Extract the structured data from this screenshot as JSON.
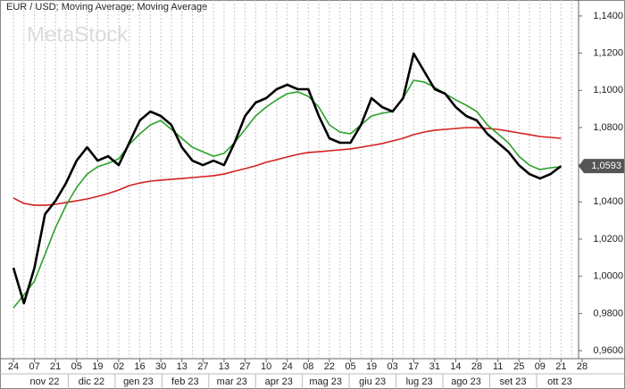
{
  "chart_data": {
    "type": "line",
    "title": "EUR / USD; Moving Average; Moving Average",
    "watermark": "MetaStock",
    "categories": [
      "24",
      null,
      "07",
      null,
      "21",
      null,
      "05",
      null,
      "19",
      null,
      "02",
      null,
      "16",
      null,
      "30",
      null,
      "13",
      null,
      "27",
      null,
      "13",
      null,
      "27",
      null,
      "10",
      null,
      "24",
      null,
      "08",
      null,
      "22",
      null,
      "05",
      null,
      "19",
      null,
      "03",
      null,
      "17",
      null,
      "31",
      null,
      "14",
      null,
      "28",
      null,
      "11",
      null,
      "25",
      null,
      "09",
      null,
      "21",
      null,
      "28"
    ],
    "month_labels": [
      "nov 22",
      "dic 22",
      "gen 23",
      "feb 23",
      "mar 23",
      "apr 23",
      "mag 23",
      "giu 23",
      "lug 23",
      "ago 23",
      "set 23",
      "ott 23"
    ],
    "series": [
      {
        "name": "EUR / USD",
        "color": "#000000",
        "values": [
          1.0046,
          0.9855,
          1.0046,
          1.0334,
          1.0406,
          1.0502,
          1.0622,
          1.0694,
          1.0622,
          1.0646,
          1.0598,
          1.0718,
          1.0838,
          1.0886,
          1.0862,
          1.0814,
          1.0694,
          1.0622,
          1.0598,
          1.0622,
          1.0598,
          1.0718,
          1.0862,
          1.0934,
          1.0958,
          1.1006,
          1.103,
          1.1006,
          1.1006,
          1.0862,
          1.0742,
          1.0718,
          1.0718,
          1.0814,
          1.0958,
          1.091,
          1.0886,
          1.0958,
          1.1198,
          1.1102,
          1.1006,
          1.0982,
          1.091,
          1.0862,
          1.0838,
          1.0766,
          1.0718,
          1.067,
          1.0598,
          1.055,
          1.0526,
          1.055,
          1.0593,
          null,
          null
        ],
        "value_labels": [
          null,
          null,
          null,
          null,
          null,
          null,
          null,
          null,
          null,
          null,
          null,
          null,
          null,
          null,
          null,
          null,
          null,
          null,
          null,
          null,
          null,
          null,
          null,
          null,
          null,
          null,
          null,
          null,
          null,
          null,
          null,
          null,
          null,
          null,
          null,
          null,
          null,
          null,
          null,
          null,
          null,
          null,
          null,
          null,
          null,
          null,
          null,
          null,
          null,
          null,
          null,
          null,
          "1,0593",
          null,
          null
        ]
      },
      {
        "name": "Moving Average",
        "color": "#2ca02c",
        "values": [
          0.983,
          0.99,
          0.9974,
          1.0118,
          1.0262,
          1.0382,
          1.0478,
          1.055,
          1.0589,
          1.0608,
          1.0632,
          1.0709,
          1.0766,
          1.0814,
          1.0838,
          1.079,
          1.0742,
          1.0694,
          1.067,
          1.0646,
          1.0661,
          1.0718,
          1.079,
          1.0862,
          1.091,
          1.0949,
          1.0982,
          1.0992,
          1.0968,
          1.091,
          1.0814,
          1.0776,
          1.0766,
          1.0814,
          1.0862,
          1.0877,
          1.0886,
          1.0958,
          1.1054,
          1.1045,
          1.1016,
          1.0982,
          1.0949,
          1.092,
          1.0886,
          1.0814,
          1.0766,
          1.0718,
          1.0646,
          1.0598,
          1.0574,
          1.0584,
          1.0589,
          null,
          null
        ]
      },
      {
        "name": "Moving Average",
        "color": "#d42020",
        "values": [
          1.0421,
          1.0392,
          1.0382,
          1.0382,
          1.0387,
          1.0397,
          1.0406,
          1.0416,
          1.043,
          1.0445,
          1.0464,
          1.0488,
          1.0502,
          1.0512,
          1.0517,
          1.0522,
          1.0526,
          1.0531,
          1.0536,
          1.0541,
          1.055,
          1.0565,
          1.0579,
          1.0594,
          1.0613,
          1.0627,
          1.0642,
          1.0656,
          1.0666,
          1.067,
          1.0675,
          1.068,
          1.0685,
          1.0694,
          1.0704,
          1.0714,
          1.0728,
          1.0742,
          1.0762,
          1.0776,
          1.0786,
          1.079,
          1.0795,
          1.08,
          1.08,
          1.0795,
          1.079,
          1.0781,
          1.0771,
          1.0762,
          1.0752,
          1.0747,
          1.0742,
          null,
          null
        ]
      }
    ],
    "ylim": [
      0.9557,
      1.1486
    ],
    "yticks": [
      {
        "value": 0.96,
        "label": "0,9600"
      },
      {
        "value": 0.98,
        "label": "0,9800"
      },
      {
        "value": 1.0,
        "label": "1,0000"
      },
      {
        "value": 1.02,
        "label": "1,0200"
      },
      {
        "value": 1.04,
        "label": "1,0400"
      },
      {
        "value": 1.06,
        "label": "1,0600"
      },
      {
        "value": 1.08,
        "label": "1,0800"
      },
      {
        "value": 1.1,
        "label": "1,1000"
      },
      {
        "value": 1.12,
        "label": "1,1200"
      },
      {
        "value": 1.14,
        "label": "1,1400"
      }
    ],
    "grid": true
  }
}
